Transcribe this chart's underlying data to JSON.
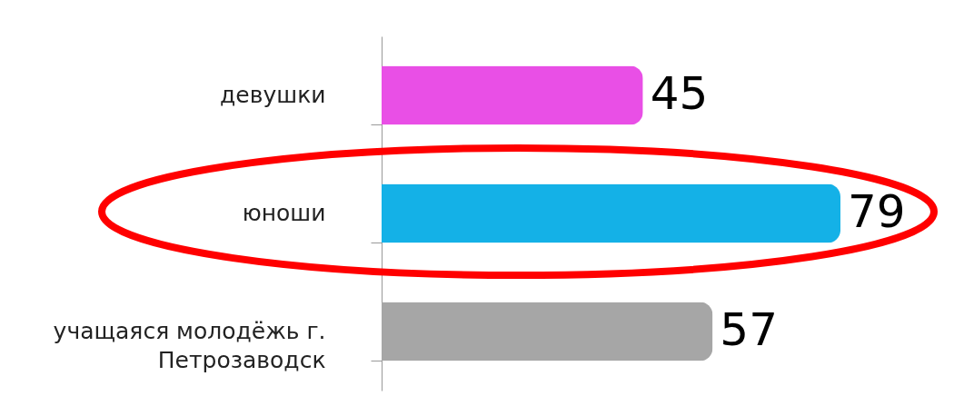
{
  "chart_data": {
    "type": "bar",
    "orientation": "horizontal",
    "categories": [
      "девушки",
      "юноши",
      "учащаяся молодёжь г. Петрозаводск"
    ],
    "values": [
      45,
      79,
      57
    ],
    "colors": [
      "#e94fe6",
      "#14b1e7",
      "#a6a6a6"
    ],
    "data_labels": true
  }
}
